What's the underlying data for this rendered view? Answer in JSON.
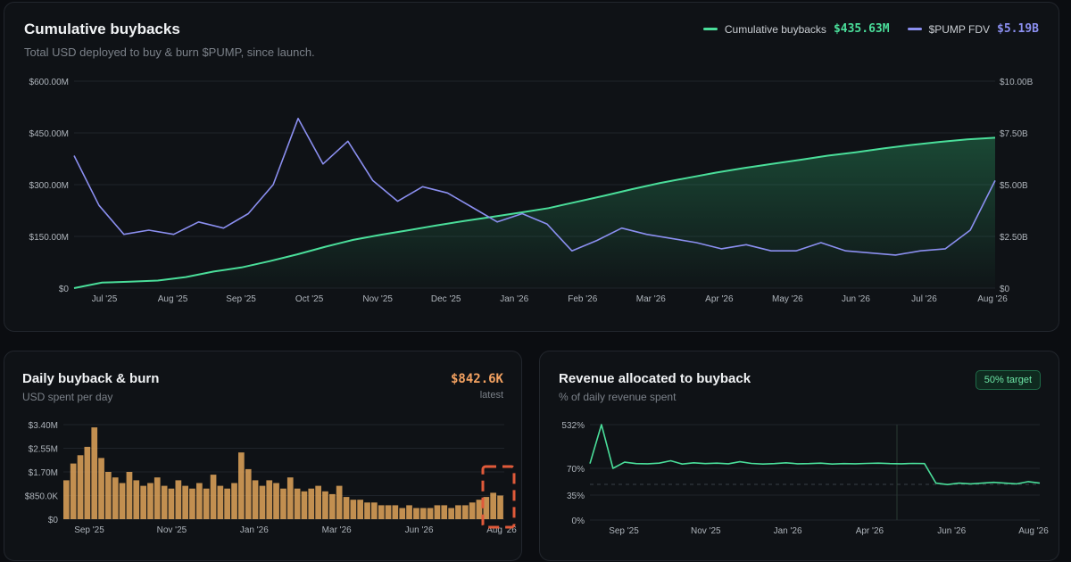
{
  "colors": {
    "buybacks": "#4ade9a",
    "fdv": "#8b8ff0",
    "daily": "#e2a65a",
    "revenue": "#4ade9a",
    "highlight": "#e05a3a"
  },
  "main": {
    "title": "Cumulative buybacks",
    "subtitle": "Total USD deployed to buy & burn $PUMP, since launch.",
    "legend_buybacks_label": "Cumulative buybacks",
    "legend_buybacks_value": "$435.63M",
    "legend_fdv_label": "$PUMP FDV",
    "legend_fdv_value": "$5.19B"
  },
  "daily": {
    "title": "Daily buyback & burn",
    "subtitle": "USD spent per day",
    "value": "$842.6K",
    "value_label": "latest"
  },
  "revenue": {
    "title": "Revenue allocated to buyback",
    "subtitle": "% of daily revenue spent",
    "badge": "50% target"
  },
  "chart_data": [
    {
      "type": "line",
      "title": "Cumulative buybacks",
      "x_ticks": [
        "Jul '25",
        "Aug '25",
        "Sep '25",
        "Oct '25",
        "Nov '25",
        "Dec '25",
        "Jan '26",
        "Feb '26",
        "Mar '26",
        "Apr '26",
        "May '26",
        "Jun '26",
        "Jul '26",
        "Aug '26"
      ],
      "y_ticks_left": [
        "$0",
        "$150.00M",
        "$300.00M",
        "$450.00M",
        "$600.00M"
      ],
      "y_ticks_right": [
        "$0",
        "$2.50B",
        "$5.00B",
        "$7.50B",
        "$10.00B"
      ],
      "ylim_left": [
        0,
        600
      ],
      "ylim_right": [
        0,
        10
      ],
      "grid": true,
      "legend": "top-right",
      "series": [
        {
          "name": "Cumulative buybacks",
          "axis": "left",
          "unit": "$M",
          "values": [
            0,
            16,
            19,
            22,
            32,
            48,
            60,
            78,
            98,
            120,
            140,
            155,
            168,
            182,
            195,
            207,
            219,
            232,
            250,
            268,
            287,
            305,
            320,
            335,
            348,
            360,
            372,
            384,
            394,
            405,
            415,
            424,
            431,
            436
          ]
        },
        {
          "name": "$PUMP FDV",
          "axis": "right",
          "unit": "$B",
          "values": [
            6.4,
            4.0,
            2.6,
            2.8,
            2.6,
            3.2,
            2.9,
            3.6,
            5.0,
            8.2,
            6.0,
            7.1,
            5.2,
            4.2,
            4.9,
            4.6,
            3.9,
            3.2,
            3.6,
            3.1,
            1.8,
            2.3,
            2.9,
            2.6,
            2.4,
            2.2,
            1.9,
            2.1,
            1.8,
            1.8,
            2.2,
            1.8,
            1.7,
            1.6,
            1.8,
            1.9,
            2.8,
            5.2
          ]
        }
      ]
    },
    {
      "type": "bar",
      "title": "Daily buyback & burn",
      "x_ticks": [
        "Sep '25",
        "Nov '25",
        "Jan '26",
        "Mar '26",
        "Jun '26",
        "Aug '26"
      ],
      "y_ticks": [
        "$0",
        "$850.0K",
        "$1.70M",
        "$2.55M",
        "$3.40M"
      ],
      "ylim": [
        0,
        3.4
      ],
      "unit": "$M",
      "values": [
        1.4,
        2.0,
        2.3,
        2.6,
        3.3,
        2.2,
        1.7,
        1.5,
        1.3,
        1.7,
        1.4,
        1.2,
        1.3,
        1.5,
        1.2,
        1.1,
        1.4,
        1.2,
        1.1,
        1.3,
        1.1,
        1.6,
        1.2,
        1.1,
        1.3,
        2.4,
        1.8,
        1.4,
        1.2,
        1.4,
        1.3,
        1.1,
        1.5,
        1.1,
        1.0,
        1.1,
        1.2,
        1.0,
        0.9,
        1.2,
        0.8,
        0.7,
        0.7,
        0.6,
        0.6,
        0.5,
        0.5,
        0.5,
        0.4,
        0.5,
        0.4,
        0.4,
        0.4,
        0.5,
        0.5,
        0.4,
        0.5,
        0.5,
        0.6,
        0.7,
        0.8,
        0.95,
        0.85
      ]
    },
    {
      "type": "line",
      "title": "Revenue allocated to buyback",
      "x_ticks": [
        "Sep '25",
        "Nov '25",
        "Jan '26",
        "Apr '26",
        "Jun '26",
        "Aug '26"
      ],
      "y_ticks": [
        "0%",
        "35%",
        "70%",
        "532%"
      ],
      "reference_line": 50,
      "unit": "%",
      "series": [
        {
          "name": "",
          "values": [
            120,
            532,
            70,
            135,
            120,
            118,
            125,
            150,
            115,
            128,
            120,
            125,
            118,
            140,
            122,
            115,
            120,
            128,
            118,
            120,
            125,
            115,
            120,
            118,
            122,
            125,
            120,
            118,
            122,
            120,
            50,
            48,
            50,
            49,
            50,
            51,
            50,
            49,
            52,
            50
          ]
        }
      ]
    }
  ]
}
